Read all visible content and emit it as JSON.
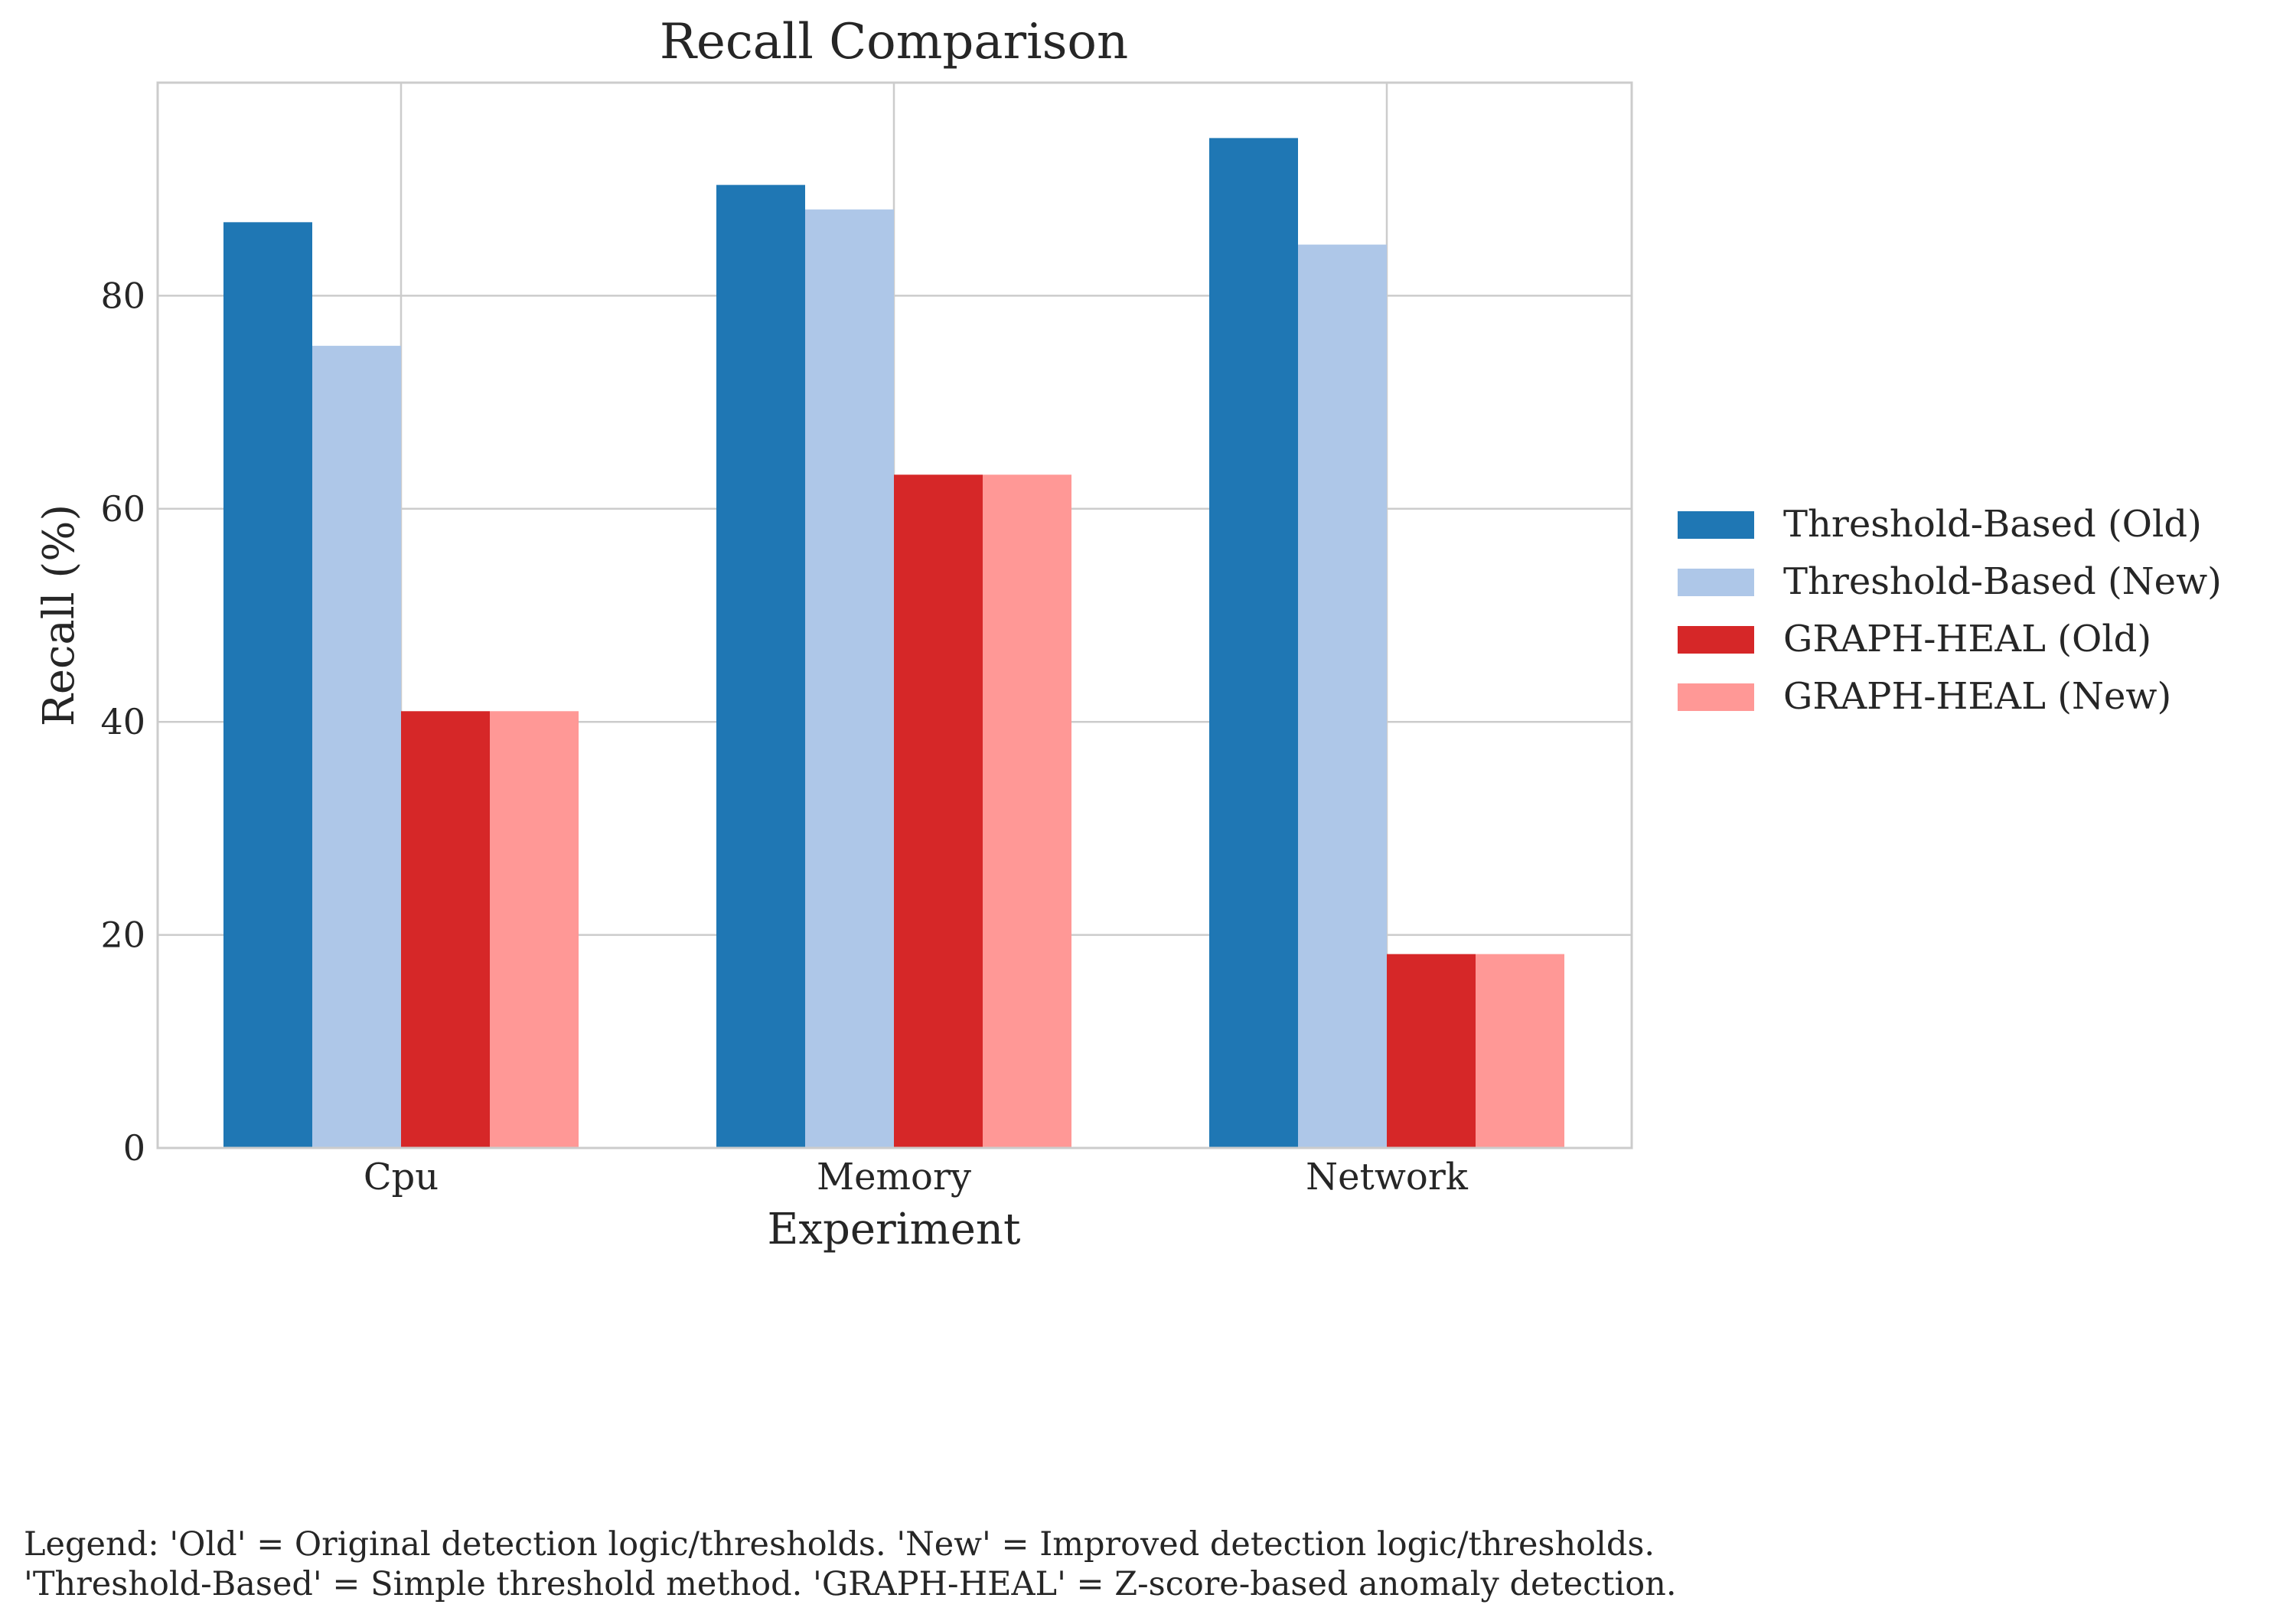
{
  "chart_data": {
    "type": "bar",
    "title": "Recall Comparison",
    "xlabel": "Experiment",
    "ylabel": "Recall (%)",
    "categories": [
      "Cpu",
      "Memory",
      "Network"
    ],
    "ylim": [
      0,
      100
    ],
    "yticks": [
      0,
      20,
      40,
      60,
      80
    ],
    "grid": true,
    "legend_position": "right",
    "series": [
      {
        "name": "Threshold-Based (Old)",
        "color": "#1f77b4",
        "values": [
          86.9,
          90.4,
          94.8
        ]
      },
      {
        "name": "Threshold-Based (New)",
        "color": "#aec7e8",
        "values": [
          75.3,
          88.1,
          84.8
        ]
      },
      {
        "name": "GRAPH-HEAL (Old)",
        "color": "#d62728",
        "values": [
          41.0,
          63.2,
          18.2
        ]
      },
      {
        "name": "GRAPH-HEAL (New)",
        "color": "#ff9896",
        "values": [
          41.0,
          63.2,
          18.2
        ]
      }
    ]
  },
  "footnote": {
    "line1": "Legend: 'Old' = Original detection logic/thresholds. 'New' = Improved detection logic/thresholds.",
    "line2": "'Threshold-Based' = Simple threshold method. 'GRAPH-HEAL' = Z-score-based anomaly detection."
  }
}
